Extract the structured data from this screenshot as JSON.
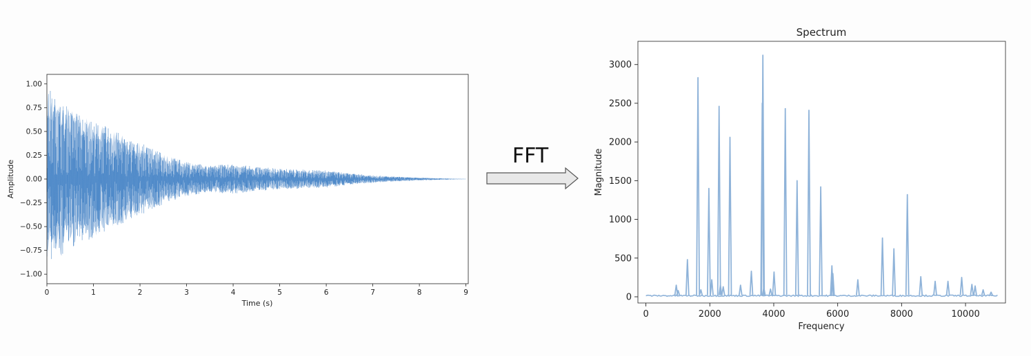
{
  "colors": {
    "signal": "#3b7dc4",
    "spectrum": "#8fb3d9",
    "arrow_fill": "#e8e8e8",
    "arrow_stroke": "#555555"
  },
  "arrow": {
    "label": "FFT"
  },
  "chart_data": [
    {
      "type": "line",
      "title": "",
      "xlabel": "Time (s)",
      "ylabel": "Amplitude",
      "xlim": [
        0,
        9.05
      ],
      "ylim": [
        -1.1,
        1.1
      ],
      "xticks": [
        0,
        1,
        2,
        3,
        4,
        5,
        6,
        7,
        8,
        9
      ],
      "yticks": [
        -1.0,
        -0.75,
        -0.5,
        -0.25,
        0.0,
        0.25,
        0.5,
        0.75,
        1.0
      ],
      "xtick_labels": [
        "0",
        "1",
        "2",
        "3",
        "4",
        "5",
        "6",
        "7",
        "8",
        "9"
      ],
      "ytick_labels": [
        "−1.00",
        "−0.75",
        "−0.50",
        "−0.25",
        "0.00",
        "0.25",
        "0.50",
        "0.75",
        "1.00"
      ],
      "envelope": {
        "t": [
          0,
          0.05,
          0.1,
          0.5,
          1,
          1.5,
          2,
          2.5,
          3,
          3.5,
          4,
          4.5,
          5,
          5.5,
          6,
          6.5,
          7,
          7.5,
          8,
          8.5,
          9
        ],
        "peak": [
          0.85,
          1.0,
          0.9,
          0.75,
          0.62,
          0.5,
          0.38,
          0.27,
          0.18,
          0.14,
          0.16,
          0.13,
          0.11,
          0.1,
          0.09,
          0.06,
          0.04,
          0.025,
          0.015,
          0.007,
          0.0
        ]
      }
    },
    {
      "type": "line",
      "title": "Spectrum",
      "xlabel": "Frequency",
      "ylabel": "Magnitude",
      "xlim": [
        -250,
        11250
      ],
      "ylim": [
        -80,
        3300
      ],
      "xticks": [
        0,
        2000,
        4000,
        6000,
        8000,
        10000
      ],
      "yticks": [
        0,
        500,
        1000,
        1500,
        2000,
        2500,
        3000
      ],
      "xtick_labels": [
        "0",
        "2000",
        "4000",
        "6000",
        "8000",
        "10000"
      ],
      "ytick_labels": [
        "0",
        "500",
        "1000",
        "1500",
        "2000",
        "2500",
        "3000"
      ],
      "frequency_max": 11000,
      "peaks": {
        "x": [
          950,
          1010,
          1300,
          1630,
          1720,
          1970,
          2060,
          2290,
          2330,
          2420,
          2630,
          2960,
          3300,
          3640,
          3660,
          3690,
          3900,
          4010,
          4360,
          4730,
          5100,
          5470,
          5820,
          5850,
          6630,
          7400,
          7760,
          8180,
          8600,
          9050,
          9450,
          9880,
          10200,
          10300,
          10550,
          10800
        ],
        "y": [
          150,
          80,
          480,
          2830,
          90,
          1400,
          220,
          2460,
          150,
          130,
          2060,
          150,
          330,
          2500,
          3120,
          120,
          100,
          320,
          2430,
          1500,
          2410,
          1420,
          400,
          300,
          220,
          760,
          620,
          1320,
          260,
          200,
          200,
          250,
          160,
          140,
          90,
          60
        ]
      }
    }
  ]
}
